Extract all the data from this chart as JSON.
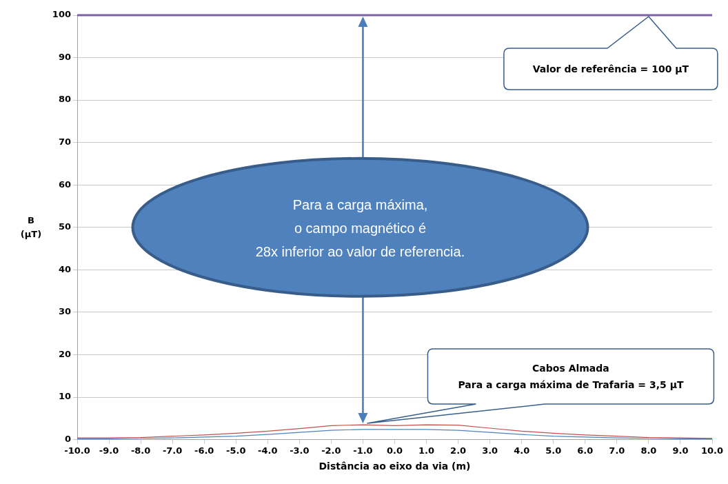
{
  "chart_data": {
    "type": "line",
    "xlabel": "Distância ao eixo da via (m)",
    "ylabel": "B\n(µT)",
    "x": [
      -10,
      -9,
      -8,
      -7,
      -6,
      -5,
      -4,
      -3,
      -2,
      -1,
      0,
      1,
      2,
      3,
      4,
      5,
      6,
      7,
      8,
      9,
      10
    ],
    "series": [
      {
        "color": "#c0504d",
        "values": [
          0.4,
          0.4,
          0.5,
          0.8,
          1.1,
          1.5,
          2.0,
          2.6,
          3.3,
          3.5,
          3.3,
          3.5,
          3.4,
          2.7,
          2.0,
          1.5,
          1.1,
          0.8,
          0.5,
          0.4,
          0.3
        ]
      },
      {
        "color": "#4f81bd",
        "values": [
          0.2,
          0.2,
          0.3,
          0.4,
          0.6,
          0.8,
          1.2,
          1.7,
          2.2,
          2.4,
          2.4,
          2.4,
          2.2,
          1.7,
          1.2,
          0.8,
          0.6,
          0.4,
          0.3,
          0.2,
          0.2
        ]
      }
    ],
    "xlim": [
      -10,
      10
    ],
    "xticks": [
      {
        "value": -10,
        "label": "-10.0"
      },
      {
        "value": -9,
        "label": "-9.0"
      },
      {
        "value": -8,
        "label": "-8.0"
      },
      {
        "value": -7,
        "label": "-7.0"
      },
      {
        "value": -6,
        "label": "-6.0"
      },
      {
        "value": -5,
        "label": "-5.0"
      },
      {
        "value": -4,
        "label": "-4.0"
      },
      {
        "value": -3,
        "label": "-3.0"
      },
      {
        "value": -2,
        "label": "-2.0"
      },
      {
        "value": -1,
        "label": "-1.0"
      },
      {
        "value": 0,
        "label": "0.0"
      },
      {
        "value": 1,
        "label": "1.0"
      },
      {
        "value": 2,
        "label": "2.0"
      },
      {
        "value": 3,
        "label": "3.0"
      },
      {
        "value": 4,
        "label": "4.0"
      },
      {
        "value": 5,
        "label": "5.0"
      },
      {
        "value": 6,
        "label": "6.0"
      },
      {
        "value": 7,
        "label": "7.0"
      },
      {
        "value": 8,
        "label": "8.0"
      },
      {
        "value": 9,
        "label": "9.0"
      },
      {
        "value": 10,
        "label": "10.0"
      }
    ],
    "ylim": [
      0,
      100
    ],
    "yticks": [
      0,
      10,
      20,
      30,
      40,
      50,
      60,
      70,
      80,
      90,
      100
    ],
    "grid": "y",
    "legend": false,
    "marker": "none",
    "line_style": "solid",
    "ref_lines": [
      {
        "axis": "y",
        "value": 100,
        "color": "#7f5fa8"
      }
    ],
    "annotations": [
      "Valor de referência = 100 µT",
      "Para a carga máxima,\no campo magnético é\n28x inferior ao valor de referencia.",
      "Cabos Almada\nPara a carga máxima de Trafaria = 3,5 µT"
    ]
  }
}
